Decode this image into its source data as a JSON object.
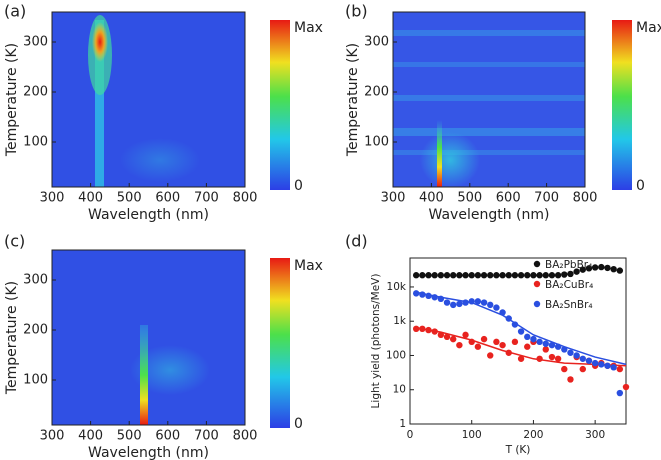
{
  "chart_data": [
    {
      "type": "heatmap",
      "panel": "(a)",
      "xlabel": "Wavelength (nm)",
      "ylabel": "Temperature (K)",
      "xlim": [
        300,
        800
      ],
      "xticks": [
        300,
        400,
        500,
        600,
        700,
        800
      ],
      "ylim": [
        10,
        360
      ],
      "yticks": [
        100,
        200,
        300
      ],
      "colorbar": {
        "max": "Max",
        "min": 0
      }
    },
    {
      "type": "heatmap",
      "panel": "(b)",
      "xlabel": "Wavelength (nm)",
      "ylabel": "Temperature (K)",
      "xlim": [
        300,
        800
      ],
      "xticks": [
        300,
        400,
        500,
        600,
        700,
        800
      ],
      "ylim": [
        10,
        360
      ],
      "yticks": [
        100,
        200,
        300
      ],
      "colorbar": {
        "max": "Max",
        "min": 0
      }
    },
    {
      "type": "heatmap",
      "panel": "(c)",
      "xlabel": "Wavelength (nm)",
      "ylabel": "Temperature (K)",
      "xlim": [
        300,
        800
      ],
      "xticks": [
        300,
        400,
        500,
        600,
        700,
        800
      ],
      "ylim": [
        10,
        360
      ],
      "yticks": [
        100,
        200,
        300
      ],
      "colorbar": {
        "max": "Max",
        "min": 0
      }
    },
    {
      "type": "scatter",
      "panel": "(d)",
      "xlabel": "T (K)",
      "ylabel": "Light yield (photons/MeV)",
      "log_y": true,
      "xlim": [
        0,
        350
      ],
      "xticks": [
        0,
        100,
        200,
        300
      ],
      "ylim": [
        1,
        70000
      ],
      "yticks": [
        1,
        10,
        100,
        {
          "value": 1000,
          "label": "1k"
        },
        {
          "value": 10000,
          "label": "10k"
        }
      ],
      "series": [
        {
          "name": "BA₂PbBr₄",
          "color": "#111111",
          "x": [
            10,
            20,
            30,
            40,
            50,
            60,
            70,
            80,
            90,
            100,
            110,
            120,
            130,
            140,
            150,
            160,
            170,
            180,
            190,
            200,
            210,
            220,
            230,
            240,
            250,
            260,
            270,
            280,
            290,
            300,
            310,
            320,
            330,
            340
          ],
          "values": [
            22000,
            22000,
            22000,
            22000,
            22000,
            22000,
            22000,
            22000,
            22000,
            22000,
            22000,
            22000,
            22000,
            22000,
            22000,
            22000,
            22000,
            22000,
            22000,
            22000,
            22000,
            22000,
            22000,
            22000,
            23000,
            24000,
            28000,
            32000,
            35000,
            37000,
            38000,
            36000,
            33000,
            30000
          ]
        },
        {
          "name": "BA₂CuBr₄",
          "color": "#e8231f",
          "x": [
            10,
            20,
            30,
            40,
            50,
            60,
            70,
            80,
            90,
            100,
            110,
            120,
            130,
            140,
            150,
            160,
            170,
            180,
            190,
            200,
            210,
            220,
            230,
            240,
            250,
            260,
            270,
            280,
            290,
            300,
            310,
            320,
            330,
            340,
            350
          ],
          "values": [
            600,
            600,
            550,
            500,
            400,
            350,
            300,
            200,
            400,
            250,
            180,
            300,
            100,
            250,
            200,
            120,
            250,
            80,
            180,
            250,
            80,
            150,
            90,
            80,
            40,
            20,
            90,
            40,
            70,
            50,
            60,
            50,
            50,
            40,
            12
          ]
        },
        {
          "name": "BA₂SnBr₄",
          "color": "#2a4fe0",
          "x": [
            10,
            20,
            30,
            40,
            50,
            60,
            70,
            80,
            90,
            100,
            110,
            120,
            130,
            140,
            150,
            160,
            170,
            180,
            190,
            200,
            210,
            220,
            230,
            240,
            250,
            260,
            270,
            280,
            290,
            300,
            310,
            320,
            330,
            340
          ],
          "values": [
            6500,
            6000,
            5500,
            5000,
            4500,
            3500,
            3000,
            3200,
            3500,
            3800,
            3800,
            3500,
            3000,
            2500,
            1800,
            1200,
            800,
            500,
            350,
            300,
            250,
            220,
            200,
            180,
            150,
            120,
            100,
            80,
            70,
            60,
            55,
            50,
            45,
            8
          ]
        }
      ],
      "fits": [
        {
          "color": "#e8231f",
          "x": [
            10,
            50,
            100,
            150,
            200,
            250,
            300,
            350
          ],
          "values": [
            650,
            480,
            280,
            140,
            80,
            60,
            55,
            50
          ]
        },
        {
          "color": "#2a4fe0",
          "x": [
            10,
            50,
            100,
            150,
            200,
            250,
            300,
            350
          ],
          "values": [
            7000,
            5000,
            3500,
            1500,
            400,
            180,
            90,
            55
          ]
        }
      ]
    }
  ]
}
